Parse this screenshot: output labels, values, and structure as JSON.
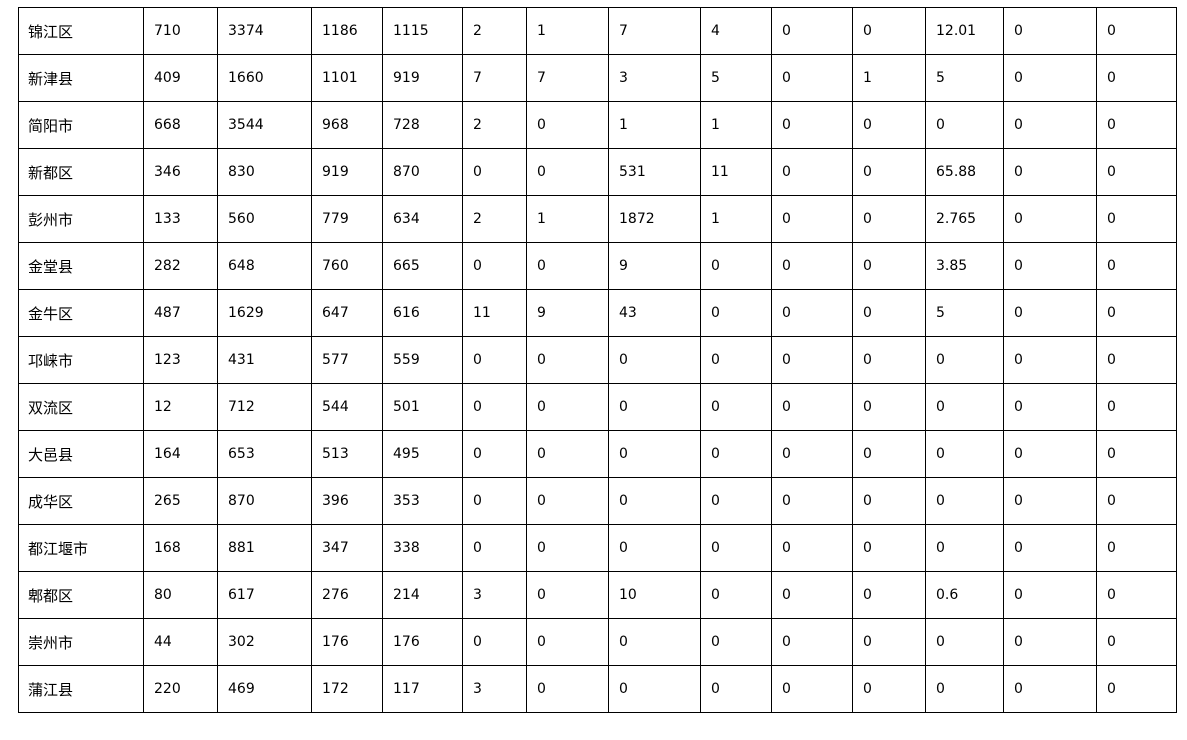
{
  "table": {
    "rows": [
      [
        "锦江区",
        "710",
        "3374",
        "1186",
        "1115",
        "2",
        "1",
        "7",
        "4",
        "0",
        "0",
        "12.01",
        "0",
        "0"
      ],
      [
        "新津县",
        "409",
        "1660",
        "1101",
        "919",
        "7",
        "7",
        "3",
        "5",
        "0",
        "1",
        "5",
        "0",
        "0"
      ],
      [
        "简阳市",
        "668",
        "3544",
        "968",
        "728",
        "2",
        "0",
        "1",
        "1",
        "0",
        "0",
        "0",
        "0",
        "0"
      ],
      [
        "新都区",
        "346",
        "830",
        "919",
        "870",
        "0",
        "0",
        "531",
        "11",
        "0",
        "0",
        "65.88",
        "0",
        "0"
      ],
      [
        "彭州市",
        "133",
        "560",
        "779",
        "634",
        "2",
        "1",
        "1872",
        "1",
        "0",
        "0",
        "2.765",
        "0",
        "0"
      ],
      [
        "金堂县",
        "282",
        "648",
        "760",
        "665",
        "0",
        "0",
        "9",
        "0",
        "0",
        "0",
        "3.85",
        "0",
        "0"
      ],
      [
        "金牛区",
        "487",
        "1629",
        "647",
        "616",
        "11",
        "9",
        "43",
        "0",
        "0",
        "0",
        "5",
        "0",
        "0"
      ],
      [
        "邛崃市",
        "123",
        "431",
        "577",
        "559",
        "0",
        "0",
        "0",
        "0",
        "0",
        "0",
        "0",
        "0",
        "0"
      ],
      [
        "双流区",
        "12",
        "712",
        "544",
        "501",
        "0",
        "0",
        "0",
        "0",
        "0",
        "0",
        "0",
        "0",
        "0"
      ],
      [
        "大邑县",
        "164",
        "653",
        "513",
        "495",
        "0",
        "0",
        "0",
        "0",
        "0",
        "0",
        "0",
        "0",
        "0"
      ],
      [
        "成华区",
        "265",
        "870",
        "396",
        "353",
        "0",
        "0",
        "0",
        "0",
        "0",
        "0",
        "0",
        "0",
        "0"
      ],
      [
        "都江堰市",
        "168",
        "881",
        "347",
        "338",
        "0",
        "0",
        "0",
        "0",
        "0",
        "0",
        "0",
        "0",
        "0"
      ],
      [
        "郫都区",
        "80",
        "617",
        "276",
        "214",
        "3",
        "0",
        "10",
        "0",
        "0",
        "0",
        "0.6",
        "0",
        "0"
      ],
      [
        "崇州市",
        "44",
        "302",
        "176",
        "176",
        "0",
        "0",
        "0",
        "0",
        "0",
        "0",
        "0",
        "0",
        "0"
      ],
      [
        "蒲江县",
        "220",
        "469",
        "172",
        "117",
        "3",
        "0",
        "0",
        "0",
        "0",
        "0",
        "0",
        "0",
        "0"
      ]
    ]
  }
}
